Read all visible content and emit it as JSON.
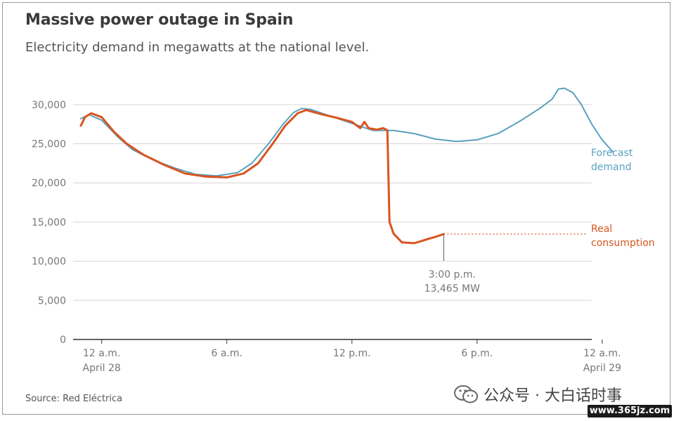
{
  "header": {
    "title": "Massive power outage in Spain",
    "subtitle": "Electricity demand in megawatts at the national level."
  },
  "footer": {
    "source": "Source: Red Eléctrica"
  },
  "watermark": {
    "text": "公众号 · 大白话时事",
    "site": "www.365jz.com"
  },
  "colors": {
    "forecast": "#5aa0c0",
    "real": "#d9541f",
    "grid": "#d6d6d6",
    "axis": "#333333"
  },
  "chart_data": {
    "type": "line",
    "title": "Massive power outage in Spain",
    "subtitle": "Electricity demand in megawatts at the national level.",
    "ylabel": "",
    "xlabel": "",
    "ylim": [
      0,
      32500
    ],
    "xlim": [
      -1,
      23.5
    ],
    "grid": "horizontal",
    "y_ticks": [
      0,
      5000,
      10000,
      15000,
      20000,
      25000,
      30000
    ],
    "y_tick_labels": [
      "0",
      "5,000",
      "10,000",
      "15,000",
      "20,000",
      "25,000",
      "30,000"
    ],
    "x_ticks": [
      {
        "x": 0,
        "line1": "12 a.m.",
        "line2": "April 28"
      },
      {
        "x": 6,
        "line1": "6 a.m.",
        "line2": ""
      },
      {
        "x": 12,
        "line1": "12 p.m.",
        "line2": ""
      },
      {
        "x": 18,
        "line1": "6 p.m.",
        "line2": ""
      },
      {
        "x": 24,
        "line1": "12 a.m.",
        "line2": "April 29"
      }
    ],
    "series": [
      {
        "name": "Forecast demand",
        "label_lines": [
          "Forecast",
          "demand"
        ],
        "color": "#5aa0c0",
        "points": [
          [
            -1,
            28200
          ],
          [
            -0.6,
            28700
          ],
          [
            0,
            28000
          ],
          [
            0.8,
            25800
          ],
          [
            1.5,
            24200
          ],
          [
            2.5,
            22900
          ],
          [
            3.5,
            21900
          ],
          [
            4.5,
            21100
          ],
          [
            5.5,
            20900
          ],
          [
            6.5,
            21300
          ],
          [
            7.2,
            22500
          ],
          [
            8,
            25000
          ],
          [
            8.7,
            27500
          ],
          [
            9.2,
            29000
          ],
          [
            9.6,
            29500
          ],
          [
            10,
            29400
          ],
          [
            11,
            28500
          ],
          [
            12,
            27600
          ],
          [
            13,
            26700
          ],
          [
            14,
            26700
          ],
          [
            15,
            26300
          ],
          [
            16,
            25600
          ],
          [
            17,
            25300
          ],
          [
            18,
            25500
          ],
          [
            19,
            26300
          ],
          [
            20,
            27800
          ],
          [
            21,
            29500
          ],
          [
            21.6,
            30700
          ],
          [
            21.9,
            32000
          ],
          [
            22.2,
            32100
          ],
          [
            22.6,
            31500
          ],
          [
            23,
            30000
          ],
          [
            23.5,
            27500
          ],
          [
            24,
            25500
          ],
          [
            24.5,
            24000
          ]
        ]
      },
      {
        "name": "Real consumption",
        "label_lines": [
          "Real",
          "consumption"
        ],
        "color": "#d9541f",
        "points": [
          [
            -1,
            27300
          ],
          [
            -0.8,
            28400
          ],
          [
            -0.5,
            28900
          ],
          [
            0,
            28400
          ],
          [
            0.6,
            26500
          ],
          [
            1.2,
            25000
          ],
          [
            2,
            23600
          ],
          [
            3,
            22300
          ],
          [
            4,
            21200
          ],
          [
            5,
            20800
          ],
          [
            6,
            20700
          ],
          [
            6.8,
            21200
          ],
          [
            7.5,
            22500
          ],
          [
            8.2,
            25000
          ],
          [
            8.8,
            27300
          ],
          [
            9.4,
            28900
          ],
          [
            9.8,
            29300
          ],
          [
            10.5,
            28800
          ],
          [
            11.3,
            28300
          ],
          [
            12,
            27800
          ],
          [
            12.4,
            27000
          ],
          [
            12.6,
            27800
          ],
          [
            12.8,
            27000
          ],
          [
            13.2,
            26800
          ],
          [
            13.5,
            27000
          ],
          [
            13.7,
            26700
          ],
          [
            13.8,
            15000
          ],
          [
            14,
            13500
          ],
          [
            14.4,
            12400
          ],
          [
            15,
            12300
          ],
          [
            15.6,
            12800
          ],
          [
            16,
            13100
          ],
          [
            16.4,
            13465
          ]
        ]
      }
    ],
    "annotation": {
      "x": 16.4,
      "y": 13465,
      "line1": "3:00 p.m.",
      "line2": "13,465 MW"
    }
  }
}
